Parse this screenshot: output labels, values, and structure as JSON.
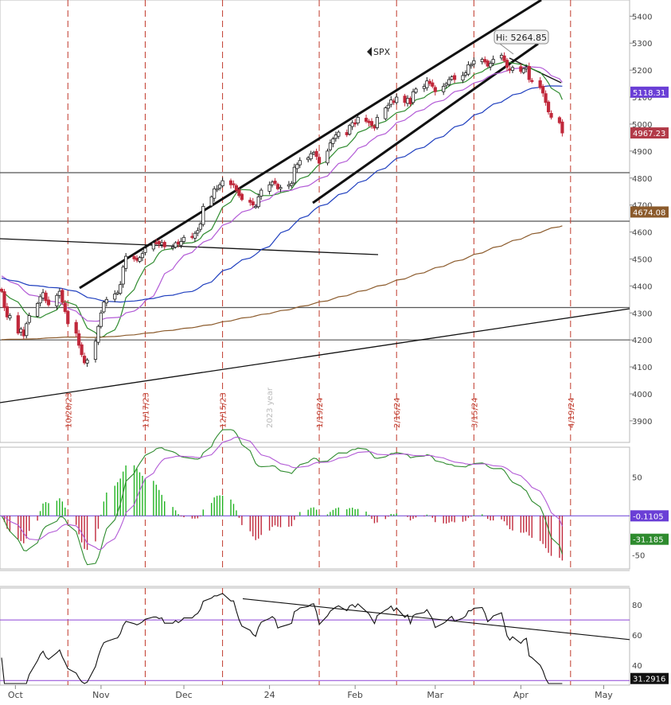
{
  "chart_data": {
    "type": "candlestick",
    "symbol": "SPX",
    "hi_label": "Hi: 5264.85",
    "price_axis": {
      "range": [
        3820,
        5460
      ],
      "ticks": [
        "5400",
        "5300",
        "5200",
        "5100",
        "5000",
        "4900",
        "4800",
        "4700",
        "4600",
        "4500",
        "4400",
        "4300",
        "4200",
        "4100",
        "4000",
        "3900"
      ]
    },
    "month_labels": [
      "Oct",
      "Nov",
      "Dec",
      "24",
      "Feb",
      "Mar",
      "Apr",
      "May"
    ],
    "event_dates": [
      "10/20/23",
      "11/17/23",
      "12/15/23",
      "1/19/24",
      "2/16/24",
      "3/15/24",
      "4/19/24"
    ],
    "year_marker": "2023 year",
    "price_tags": [
      {
        "label": "5118.31",
        "value": 5118.31,
        "color": "#6a3fd6"
      },
      {
        "label": "4967.23",
        "value": 4967.23,
        "color": "#b23a48"
      },
      {
        "label": "4674.08",
        "value": 4674.08,
        "color": "#8b5a2b"
      }
    ],
    "horizontal_levels": [
      4820,
      4640,
      4320,
      4200
    ],
    "candles": {
      "start_date": "2023-09-26",
      "closes": [
        4380,
        4320,
        4285,
        4290,
        4225,
        4240,
        4215,
        4260,
        4290,
        4335,
        4360,
        4375,
        4345,
        4330,
        4365,
        4380,
        4340,
        4305,
        4260,
        4225,
        4180,
        4145,
        4115,
        4125,
        4195,
        4250,
        4300,
        4340,
        4350,
        4370,
        4375,
        4405,
        4470,
        4510,
        4500,
        4495,
        4505,
        4520,
        4540,
        4560,
        4560,
        4555,
        4560,
        4545,
        4545,
        4560,
        4555,
        4565,
        4580,
        4580,
        4595,
        4605,
        4630,
        4695,
        4730,
        4760,
        4760,
        4775,
        4790,
        4775,
        4775,
        4755,
        4735,
        4720,
        4710,
        4700,
        4695,
        4730,
        4755,
        4775,
        4785,
        4780,
        4760,
        4765,
        4775,
        4780,
        4840,
        4850,
        4865,
        4875,
        4890,
        4895,
        4880,
        4855,
        4900,
        4930,
        4945,
        4960,
        4970,
        4960,
        4995,
        5005,
        5000,
        5025,
        5010,
        5005,
        4995,
        4985,
        5025,
        5060,
        5070,
        5090,
        5080,
        5100,
        5080,
        5095,
        5075,
        5120,
        5130,
        5140,
        5160,
        5150,
        5140,
        5120,
        5140,
        5150,
        5165,
        5175,
        5165,
        5180,
        5190,
        5220,
        5220,
        5235,
        5240,
        5230,
        5215,
        5225,
        5240,
        5255,
        5235,
        5210,
        5200,
        5210,
        5195,
        5205,
        5210,
        5165,
        5160,
        5135,
        5115,
        5080,
        5045,
        5025,
        5005,
        4967
      ]
    },
    "macd": {
      "ticks": [
        "50",
        "-50"
      ],
      "range": [
        -65,
        85
      ],
      "macd_value": "-0.1105",
      "signal_value": "-31.185"
    },
    "rsi": {
      "ticks": [
        "80",
        "60",
        "40"
      ],
      "range": [
        28,
        90
      ],
      "value": "31.2916",
      "overbought": 70,
      "oversold": 30
    }
  }
}
